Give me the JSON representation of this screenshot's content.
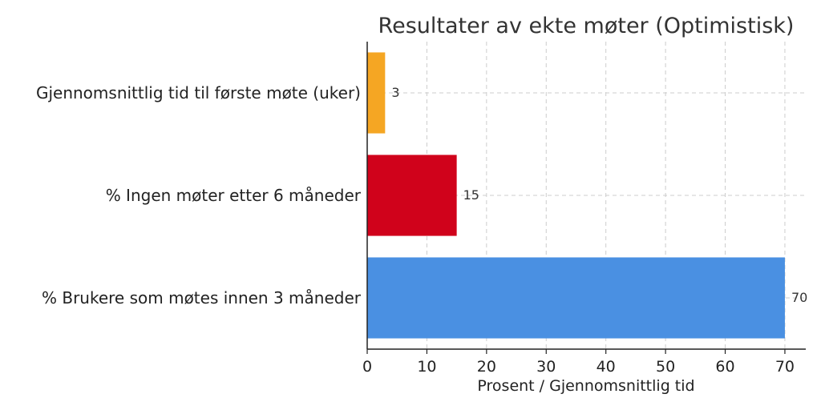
{
  "chart_data": {
    "type": "bar",
    "orientation": "horizontal",
    "title": "Resultater av ekte møter (Optimistisk)",
    "xlabel": "Prosent / Gjennomsnittlig tid",
    "ylabel": "",
    "xlim": [
      0,
      73.5
    ],
    "xticks": [
      0,
      10,
      20,
      30,
      40,
      50,
      60,
      70
    ],
    "grid": true,
    "categories": [
      "Gjennomsnittlig tid til første møte (uker)",
      "% Ingen møter etter 6 måneder",
      "% Brukere som møtes innen 3 måneder"
    ],
    "values": [
      3,
      15,
      70
    ],
    "colors": [
      "#f5a623",
      "#d0021b",
      "#4a90e2"
    ],
    "data_labels": [
      "3",
      "15",
      "70"
    ]
  }
}
